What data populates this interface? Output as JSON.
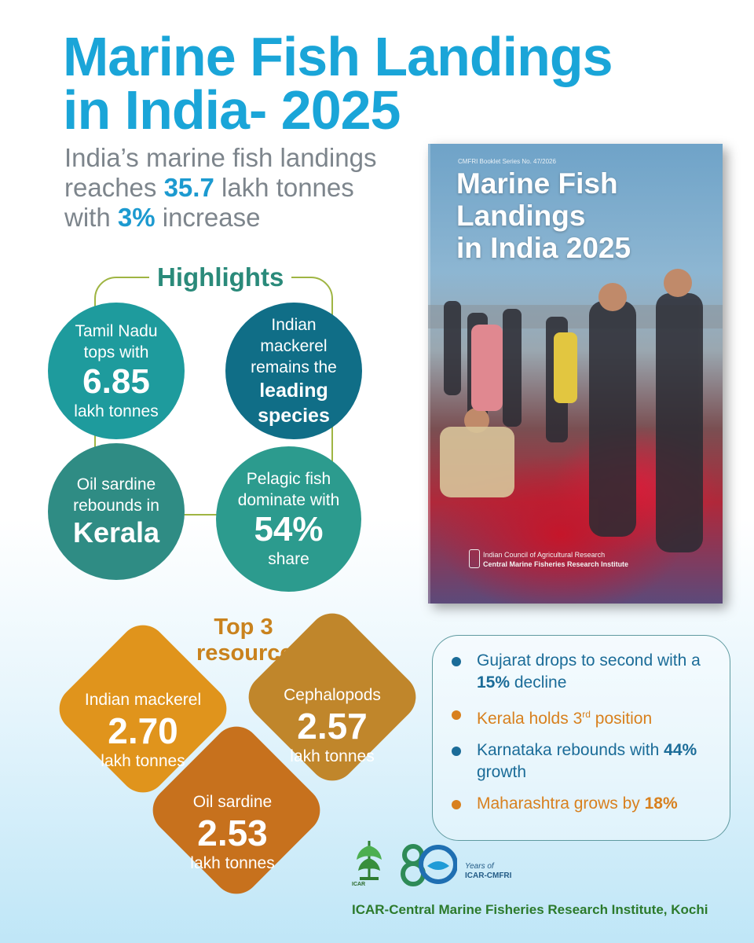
{
  "header": {
    "title_line1": "Marine Fish Landings",
    "title_line2": "in India- 2025",
    "subtitle_line1": "India’s marine fish landings",
    "subtitle_line2_prefix": "reaches ",
    "subtitle_line2_value": "35.7",
    "subtitle_line2_suffix": " lakh tonnes",
    "subtitle_line3_prefix": "with ",
    "subtitle_line3_value": "3%",
    "subtitle_line3_suffix": " increase"
  },
  "book": {
    "series": "CMFRI Booklet Series No. 47/2026",
    "title_line1": "Marine Fish",
    "title_line2": "Landings",
    "title_line3": "in India 2025",
    "org_line1": "Indian Council of Agricultural Research",
    "org_line2": "Central Marine Fisheries Research Institute"
  },
  "highlights": {
    "heading": "Highlights",
    "c1_line1": "Tamil Nadu",
    "c1_line2": "tops with",
    "c1_value": "6.85",
    "c1_unit": "lakh tonnes",
    "c2_line1": "Indian",
    "c2_line2": "mackerel",
    "c2_line3": "remains the",
    "c2_bold1": "leading",
    "c2_bold2": "species",
    "c3_line1": "Oil sardine",
    "c3_line2": "rebounds in",
    "c3_bold": "Kerala",
    "c4_line1": "Pelagic fish",
    "c4_line2": "dominate with",
    "c4_value": "54%",
    "c4_unit": "share"
  },
  "top3": {
    "heading_line1": "Top 3",
    "heading_line2": "resources",
    "items": [
      {
        "name": "Indian mackerel",
        "value": "2.70",
        "unit": "lakh tonnes"
      },
      {
        "name": "Cephalopods",
        "value": "2.57",
        "unit": "lakh tonnes"
      },
      {
        "name": "Oil sardine",
        "value": "2.53",
        "unit": "lakh tonnes"
      }
    ]
  },
  "panel": {
    "b1_text": "Gujarat drops to second with a ",
    "b1_bold": "15%",
    "b1_suffix": " decline",
    "b2_text": "Kerala holds 3",
    "b2_sup": "rd",
    "b2_suffix": " position",
    "b3_text": "Karnataka rebounds with ",
    "b3_bold": "44%",
    "b3_suffix": " growth",
    "b4_text": "Maharashtra grows by ",
    "b4_bold": "18%"
  },
  "logos": {
    "icar_label": "ICAR",
    "years_line1": "Years of",
    "years_line2": "ICAR-CMFRI"
  },
  "footer": {
    "text": "ICAR-Central Marine Fisheries Research Institute, Kochi"
  },
  "colors": {
    "title_blue": "#1aa5d8",
    "teal": "#1e9b9d",
    "dark_teal": "#106e87",
    "orange": "#e0941c",
    "footer_green": "#2c7a2c"
  }
}
